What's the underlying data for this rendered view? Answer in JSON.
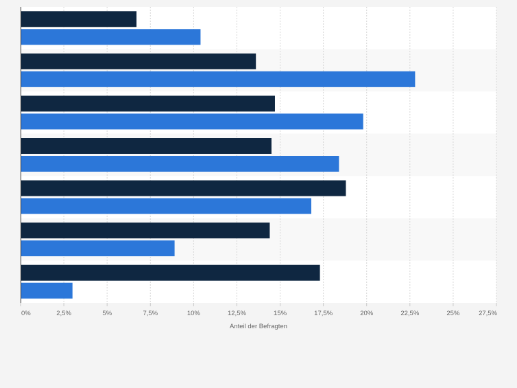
{
  "chart_data": {
    "type": "bar",
    "orientation": "horizontal",
    "title": "",
    "xlabel": "Anteil der Befragten",
    "ylabel": "",
    "xlim": [
      0,
      27.5
    ],
    "x_ticks": [
      "0%",
      "2,5%",
      "5%",
      "7,5%",
      "10%",
      "12,5%",
      "15%",
      "17,5%",
      "20%",
      "22,5%",
      "25%",
      "27,5%"
    ],
    "grid": true,
    "legend": "none",
    "categories": [
      "",
      "",
      "",
      "",
      "",
      "",
      ""
    ],
    "series": [
      {
        "color": "#0f2741",
        "values": [
          6.7,
          13.6,
          14.7,
          14.5,
          18.8,
          14.4,
          17.3
        ]
      },
      {
        "color": "#2c77d9",
        "values": [
          10.4,
          22.8,
          19.8,
          18.4,
          16.8,
          8.9,
          3.0
        ]
      }
    ],
    "band_colors": [
      "#ffffff",
      "#f8f8f8"
    ]
  }
}
